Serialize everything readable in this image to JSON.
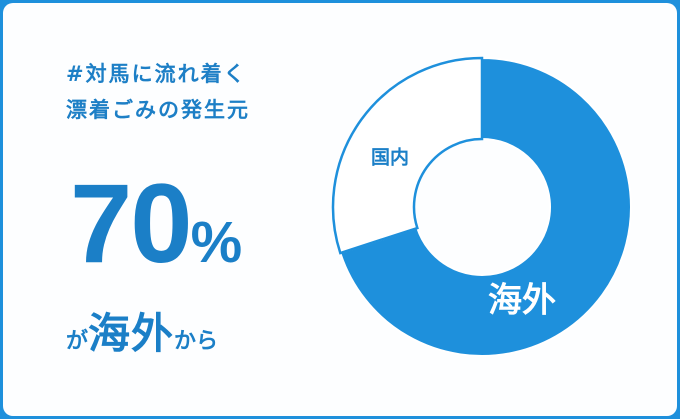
{
  "headline": {
    "line1": "#対馬に流れ着く",
    "line2": "漂着ごみの発生元"
  },
  "highlight": {
    "value": "70",
    "unit": "%",
    "prefix_particle": "が",
    "emphasis": "海外",
    "suffix": "から"
  },
  "colors": {
    "accent": "#1e90dc",
    "text": "#1b7fc7",
    "background": "#fdfeff"
  },
  "chart_data": {
    "type": "pie",
    "donut": true,
    "categories": [
      "海外",
      "国内"
    ],
    "values": [
      70,
      30
    ],
    "unit": "%",
    "colors": [
      "#1e90dc",
      "#ffffff"
    ]
  }
}
